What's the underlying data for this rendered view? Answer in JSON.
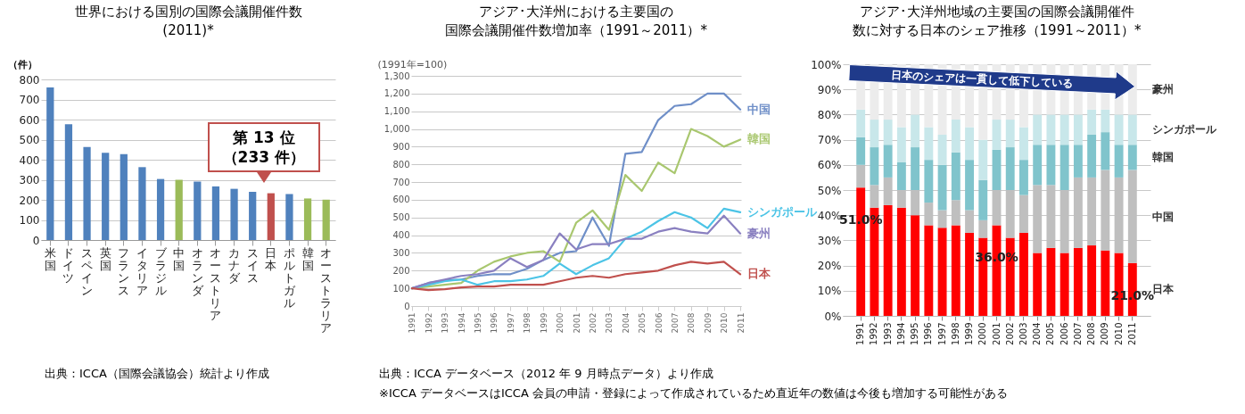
{
  "chart_data": [
    {
      "type": "bar",
      "title": "世界における国別の国際会議開催件数(2011)*",
      "ylabel": "（件）",
      "categories": [
        "米国",
        "ドイツ",
        "スペイン",
        "英国",
        "フランス",
        "イタリア",
        "ブラジル",
        "中国",
        "オランダ",
        "オーストリア",
        "カナダ",
        "スイス",
        "日本",
        "ポルトガル",
        "韓国",
        "オーストラリア"
      ],
      "values": [
        760,
        577,
        463,
        434,
        428,
        363,
        304,
        300,
        291,
        267,
        255,
        240,
        233,
        229,
        207,
        201
      ],
      "colors": [
        "#4f81bd",
        "#4f81bd",
        "#4f81bd",
        "#4f81bd",
        "#4f81bd",
        "#4f81bd",
        "#4f81bd",
        "#9bbb59",
        "#4f81bd",
        "#4f81bd",
        "#4f81bd",
        "#4f81bd",
        "#c0504d",
        "#4f81bd",
        "#9bbb59",
        "#9bbb59"
      ],
      "ylim": [
        0,
        800
      ],
      "yticks": [
        0,
        100,
        200,
        300,
        400,
        500,
        600,
        700,
        800
      ],
      "grid": "y",
      "annotations": [
        {
          "text": "第 13 位（233 件）",
          "x": "日本",
          "y": 233
        },
        "出典：ICCA（国際会議協会）統計より作成"
      ]
    },
    {
      "type": "line",
      "title": "アジア･大洋州における主要国の国際会議開催件数増加率（1991～2011）*",
      "ylabel": "(1991年=100)",
      "categories": [
        "1991",
        "1992",
        "1993",
        "1994",
        "1995",
        "1996",
        "1997",
        "1998",
        "1999",
        "2000",
        "2001",
        "2002",
        "2003",
        "2004",
        "2005",
        "2006",
        "2007",
        "2008",
        "2009",
        "2010",
        "2011"
      ],
      "series": [
        {
          "name": "中国",
          "color": "#6f8fc8",
          "values": [
            100,
            130,
            145,
            150,
            170,
            180,
            180,
            210,
            260,
            300,
            310,
            500,
            340,
            860,
            870,
            1050,
            1130,
            1140,
            1200,
            1200,
            1110
          ]
        },
        {
          "name": "韓国",
          "color": "#a9c76f",
          "values": [
            100,
            110,
            120,
            130,
            200,
            250,
            280,
            300,
            310,
            250,
            470,
            540,
            430,
            740,
            650,
            810,
            750,
            1000,
            960,
            900,
            940
          ]
        },
        {
          "name": "シンガポール",
          "color": "#4cc4e6",
          "values": [
            100,
            120,
            140,
            150,
            120,
            140,
            140,
            150,
            170,
            240,
            180,
            230,
            270,
            380,
            420,
            480,
            530,
            500,
            440,
            550,
            530
          ]
        },
        {
          "name": "豪州",
          "color": "#8a80c0",
          "values": [
            100,
            130,
            150,
            170,
            180,
            200,
            270,
            220,
            260,
            410,
            320,
            350,
            350,
            380,
            380,
            420,
            440,
            420,
            410,
            510,
            410
          ]
        },
        {
          "name": "日本",
          "color": "#c0504d",
          "values": [
            100,
            90,
            95,
            105,
            110,
            110,
            120,
            120,
            120,
            140,
            160,
            170,
            160,
            180,
            190,
            200,
            230,
            250,
            240,
            250,
            180
          ]
        }
      ],
      "ylim": [
        0,
        1300
      ],
      "yticks": [
        0,
        100,
        200,
        300,
        400,
        500,
        600,
        700,
        800,
        900,
        {
          "value": 1000,
          "label": "1,000"
        },
        {
          "value": 1100,
          "label": "1,100"
        },
        {
          "value": 1200,
          "label": "1,200"
        },
        {
          "value": 1300,
          "label": "1,300"
        }
      ],
      "grid": "y",
      "marker": "none",
      "line_style": "solid",
      "annotations": [
        "出典：ICCA データベース（2012 年 9 月時点データ）より作成",
        "※ICCA データベースはICCA 会員の申請・登録によって作成されているため直近年の数値は今後も増加する可能性がある"
      ]
    },
    {
      "type": "bar",
      "title": "アジア･大洋州地域の主要国の国際会議開催件数に対する日本のシェア推移（1991～2011）*",
      "stacked": true,
      "categories": [
        "1991",
        "1992",
        "1993",
        "1994",
        "1995",
        "1996",
        "1997",
        "1998",
        "1999",
        "2000",
        "2001",
        "2002",
        "2003",
        "2004",
        "2005",
        "2006",
        "2007",
        "2008",
        "2009",
        "2010",
        "2011"
      ],
      "series": [
        {
          "name": "日本",
          "color": "#ff0000",
          "values": [
            51,
            43,
            44,
            43,
            40,
            36,
            35,
            36,
            33,
            31,
            36,
            31,
            33,
            25,
            27,
            25,
            27,
            28,
            26,
            25,
            21
          ],
          "value_labels": [
            "51.0%",
            null,
            null,
            null,
            null,
            null,
            null,
            null,
            null,
            null,
            "36.0%",
            null,
            null,
            null,
            null,
            null,
            null,
            null,
            null,
            null,
            "21.0%"
          ]
        },
        {
          "name": "中国",
          "color": "#bfbfbf",
          "values": [
            9,
            9,
            11,
            7,
            10,
            9,
            7,
            10,
            9,
            7,
            14,
            19,
            15,
            27,
            25,
            25,
            28,
            27,
            32,
            30,
            37
          ]
        },
        {
          "name": "韓国",
          "color": "#80c4cc",
          "values": [
            11,
            15,
            13,
            11,
            17,
            17,
            18,
            19,
            20,
            16,
            16,
            17,
            14,
            16,
            16,
            18,
            13,
            17,
            15,
            13,
            10
          ]
        },
        {
          "name": "シンガポール",
          "color": "#c8e7ea",
          "values": [
            11,
            11,
            10,
            14,
            13,
            13,
            12,
            13,
            13,
            16,
            12,
            11,
            13,
            12,
            12,
            12,
            12,
            10,
            9,
            12,
            12
          ]
        },
        {
          "name": "豪州",
          "color": "#ececec",
          "values": [
            18,
            22,
            22,
            25,
            20,
            25,
            28,
            22,
            25,
            30,
            22,
            22,
            25,
            20,
            20,
            20,
            20,
            18,
            18,
            20,
            20
          ]
        }
      ],
      "ylim": [
        0,
        100
      ],
      "yticks": [
        {
          "value": 0,
          "label": "0%"
        },
        {
          "value": 10,
          "label": "10%"
        },
        {
          "value": 20,
          "label": "20%"
        },
        {
          "value": 30,
          "label": "30%"
        },
        {
          "value": 40,
          "label": "40%"
        },
        {
          "value": 50,
          "label": "50%"
        },
        {
          "value": 60,
          "label": "60%"
        },
        {
          "value": 70,
          "label": "70%"
        },
        {
          "value": 80,
          "label": "80%"
        },
        {
          "value": 90,
          "label": "90%"
        },
        {
          "value": 100,
          "label": "100%"
        }
      ],
      "grid": "y",
      "annotations": [
        "日本のシェアは一貫して低下している"
      ]
    }
  ]
}
